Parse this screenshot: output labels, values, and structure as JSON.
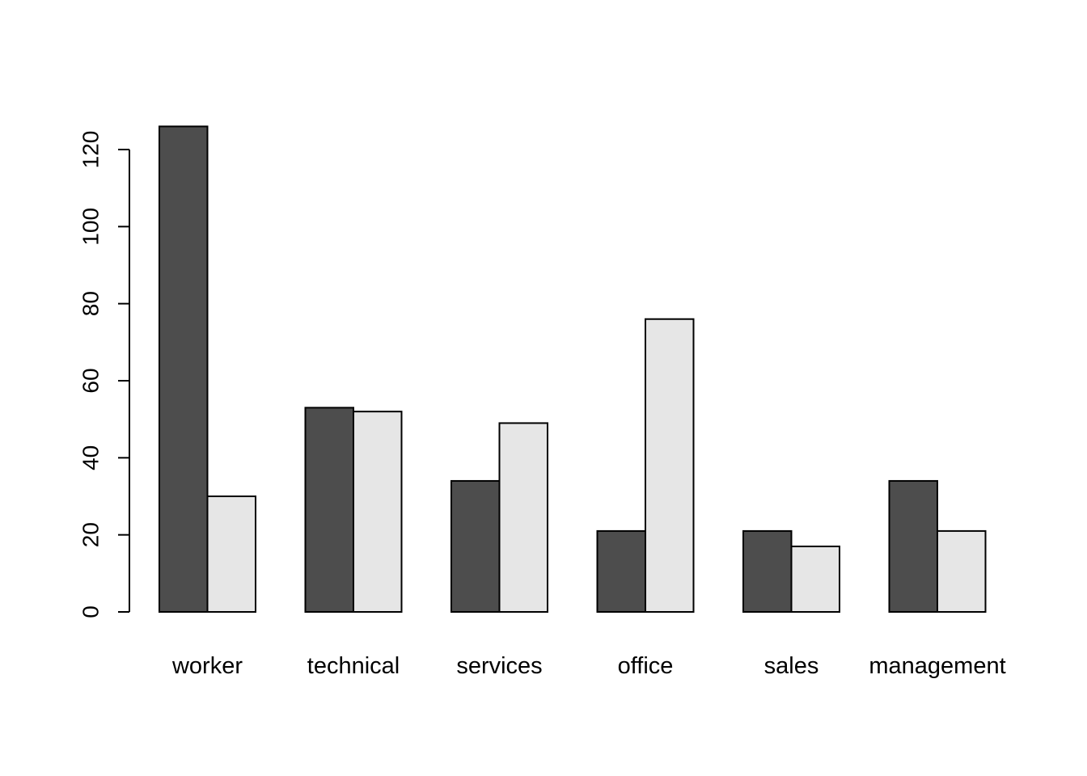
{
  "chart_data": {
    "type": "bar",
    "title": "",
    "xlabel": "",
    "ylabel": "",
    "categories": [
      "worker",
      "technical",
      "services",
      "office",
      "sales",
      "management"
    ],
    "series": [
      {
        "name": "dark",
        "color": "#4D4D4D",
        "values": [
          126,
          53,
          34,
          21,
          21,
          34
        ]
      },
      {
        "name": "light",
        "color": "#E6E6E6",
        "values": [
          30,
          52,
          49,
          76,
          17,
          21
        ]
      }
    ],
    "yticks": [
      0,
      20,
      40,
      60,
      80,
      100,
      120
    ],
    "ylim": [
      0,
      126
    ],
    "grid": false,
    "legend": null,
    "bar_layout": "grouped"
  },
  "colors": {
    "background": "#FFFFFF",
    "axis": "#000000",
    "bar_border": "#000000"
  }
}
